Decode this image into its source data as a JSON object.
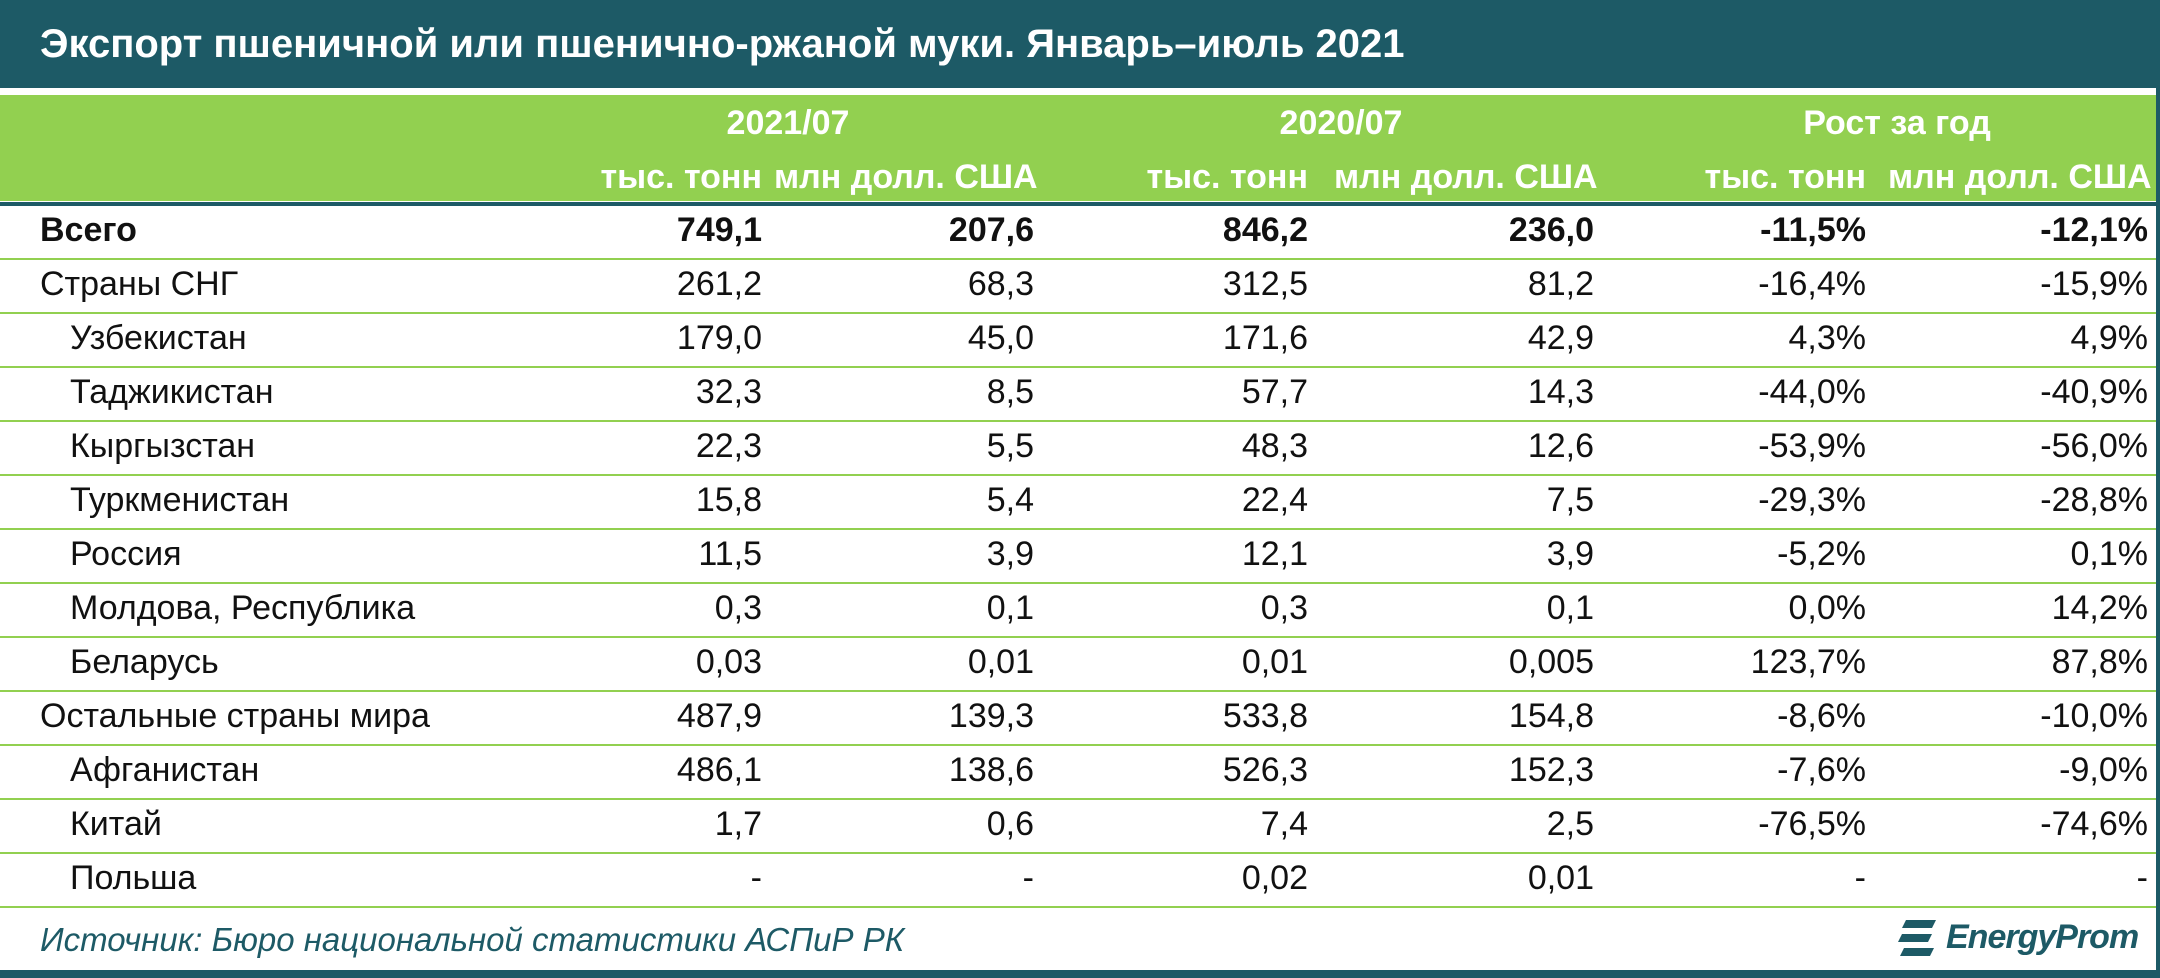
{
  "title": "Экспорт пшеничной или пшенично-ржаной муки. Январь–июль 2021",
  "source": "Источник: Бюро национальной статистики АСПиР РК",
  "brand": "EnergyProm",
  "colors": {
    "header_dark": "#1d5a66",
    "header_green": "#92d050",
    "text": "#111111"
  },
  "chart_data": {
    "type": "table",
    "column_groups": [
      {
        "label": "2021/07",
        "units": [
          "тыс. тонн",
          "млн долл. США"
        ]
      },
      {
        "label": "2020/07",
        "units": [
          "тыс. тонн",
          "млн долл. США"
        ]
      },
      {
        "label": "Рост за год",
        "units": [
          "тыс. тонн",
          "млн долл. США"
        ]
      }
    ],
    "rows": [
      {
        "name": "Всего",
        "bold": true,
        "indent": 0,
        "values": [
          "749,1",
          "207,6",
          "846,2",
          "236,0",
          "-11,5%",
          "-12,1%"
        ]
      },
      {
        "name": "Страны СНГ",
        "bold": false,
        "indent": 0,
        "values": [
          "261,2",
          "68,3",
          "312,5",
          "81,2",
          "-16,4%",
          "-15,9%"
        ]
      },
      {
        "name": "Узбекистан",
        "bold": false,
        "indent": 1,
        "values": [
          "179,0",
          "45,0",
          "171,6",
          "42,9",
          "4,3%",
          "4,9%"
        ]
      },
      {
        "name": "Таджикистан",
        "bold": false,
        "indent": 1,
        "values": [
          "32,3",
          "8,5",
          "57,7",
          "14,3",
          "-44,0%",
          "-40,9%"
        ]
      },
      {
        "name": "Кыргызстан",
        "bold": false,
        "indent": 1,
        "values": [
          "22,3",
          "5,5",
          "48,3",
          "12,6",
          "-53,9%",
          "-56,0%"
        ]
      },
      {
        "name": "Туркменистан",
        "bold": false,
        "indent": 1,
        "values": [
          "15,8",
          "5,4",
          "22,4",
          "7,5",
          "-29,3%",
          "-28,8%"
        ]
      },
      {
        "name": "Россия",
        "bold": false,
        "indent": 1,
        "values": [
          "11,5",
          "3,9",
          "12,1",
          "3,9",
          "-5,2%",
          "0,1%"
        ]
      },
      {
        "name": "Молдова, Республика",
        "bold": false,
        "indent": 1,
        "values": [
          "0,3",
          "0,1",
          "0,3",
          "0,1",
          "0,0%",
          "14,2%"
        ]
      },
      {
        "name": "Беларусь",
        "bold": false,
        "indent": 1,
        "values": [
          "0,03",
          "0,01",
          "0,01",
          "0,005",
          "123,7%",
          "87,8%"
        ]
      },
      {
        "name": "Остальные страны мира",
        "bold": false,
        "indent": 0,
        "values": [
          "487,9",
          "139,3",
          "533,8",
          "154,8",
          "-8,6%",
          "-10,0%"
        ]
      },
      {
        "name": "Афганистан",
        "bold": false,
        "indent": 1,
        "values": [
          "486,1",
          "138,6",
          "526,3",
          "152,3",
          "-7,6%",
          "-9,0%"
        ]
      },
      {
        "name": "Китай",
        "bold": false,
        "indent": 1,
        "values": [
          "1,7",
          "0,6",
          "7,4",
          "2,5",
          "-76,5%",
          "-74,6%"
        ]
      },
      {
        "name": "Польша",
        "bold": false,
        "indent": 1,
        "values": [
          "-",
          "-",
          "0,02",
          "0,01",
          "-",
          "-"
        ]
      }
    ]
  }
}
